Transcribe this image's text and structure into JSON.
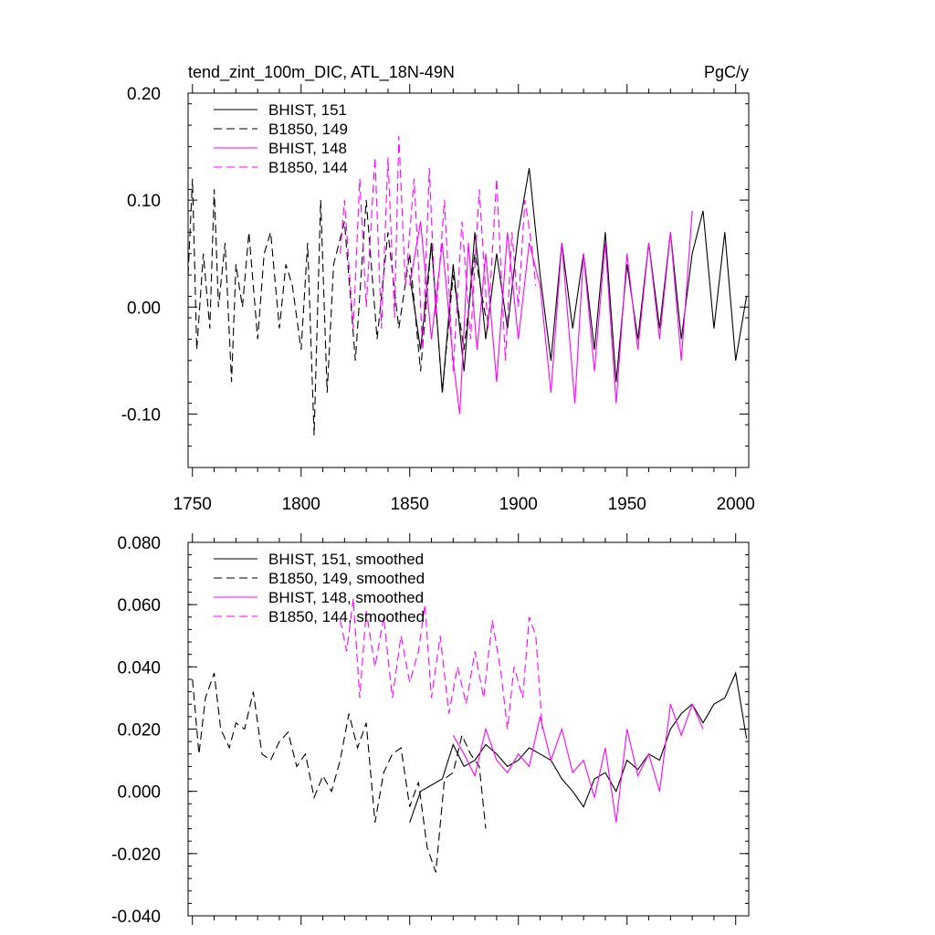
{
  "chart_data": [
    {
      "type": "line",
      "title": "tend_zint_100m_DIC, ATL_18N-49N",
      "units": "PgC/y",
      "xlim": [
        1748,
        2006
      ],
      "ylim": [
        -0.15,
        0.2
      ],
      "yticks": [
        -0.1,
        0.0,
        0.1,
        0.2
      ],
      "ytick_labels": [
        "-0.10",
        "0.00",
        "0.10",
        "0.20"
      ],
      "xticks": [
        1750,
        1800,
        1850,
        1900,
        1950,
        2000
      ],
      "xtick_labels": [
        "1750",
        "1800",
        "1850",
        "1900",
        "1950",
        "2000"
      ],
      "legend_location": "top-left",
      "series": [
        {
          "name": "BHIST, 151",
          "color": "#000000",
          "dash": "solid",
          "x": [
            1850,
            1855,
            1860,
            1865,
            1870,
            1875,
            1880,
            1885,
            1890,
            1895,
            1900,
            1905,
            1910,
            1915,
            1920,
            1925,
            1930,
            1935,
            1940,
            1945,
            1950,
            1955,
            1960,
            1965,
            1970,
            1975,
            1980,
            1985,
            1990,
            1995,
            2000,
            2005
          ],
          "values": [
            0.03,
            -0.04,
            0.06,
            -0.08,
            0.04,
            -0.06,
            0.07,
            -0.03,
            0.05,
            -0.02,
            0.07,
            0.13,
            0.03,
            -0.05,
            0.06,
            -0.02,
            0.05,
            -0.04,
            0.07,
            -0.07,
            0.04,
            -0.03,
            0.06,
            -0.02,
            0.07,
            -0.03,
            0.05,
            0.09,
            -0.02,
            0.07,
            -0.05,
            0.01
          ]
        },
        {
          "name": "B1850, 149",
          "color": "#000000",
          "dash": "dashed",
          "x": [
            1748,
            1750,
            1752,
            1755,
            1758,
            1760,
            1762,
            1765,
            1768,
            1770,
            1773,
            1776,
            1780,
            1783,
            1786,
            1790,
            1793,
            1796,
            1800,
            1803,
            1806,
            1809,
            1812,
            1815,
            1820,
            1825,
            1830,
            1835,
            1840,
            1845,
            1850,
            1855,
            1860,
            1865,
            1870,
            1875,
            1880,
            1885
          ],
          "values": [
            0.03,
            0.12,
            -0.04,
            0.05,
            -0.02,
            0.11,
            0.0,
            0.06,
            -0.07,
            0.04,
            0.0,
            0.07,
            -0.03,
            0.05,
            0.07,
            -0.02,
            0.04,
            0.02,
            -0.04,
            0.06,
            -0.12,
            0.1,
            -0.08,
            0.04,
            0.08,
            -0.05,
            0.1,
            -0.03,
            0.07,
            -0.02,
            0.05,
            -0.06,
            0.06,
            -0.08,
            0.03,
            -0.04,
            0.05,
            -0.01
          ]
        },
        {
          "name": "BHIST, 148",
          "color": "#ff00ff",
          "dash": "solid",
          "x": [
            1850,
            1855,
            1860,
            1865,
            1870,
            1873,
            1877,
            1881,
            1885,
            1890,
            1895,
            1900,
            1905,
            1910,
            1915,
            1920,
            1926,
            1930,
            1935,
            1940,
            1945,
            1950,
            1955,
            1960,
            1965,
            1970,
            1975,
            1980
          ],
          "values": [
            0.02,
            0.08,
            -0.03,
            0.06,
            -0.05,
            -0.1,
            0.06,
            -0.04,
            0.05,
            -0.07,
            0.07,
            -0.03,
            0.06,
            0.02,
            -0.08,
            0.06,
            -0.09,
            0.05,
            -0.06,
            0.06,
            -0.09,
            0.05,
            -0.04,
            0.06,
            -0.03,
            0.07,
            -0.05,
            0.09
          ]
        },
        {
          "name": "B1850, 144",
          "color": "#ff00ff",
          "dash": "dashed",
          "x": [
            1818,
            1820,
            1824,
            1827,
            1830,
            1834,
            1837,
            1840,
            1843,
            1845,
            1848,
            1852,
            1856,
            1859,
            1862,
            1866,
            1870,
            1874,
            1878,
            1882,
            1886,
            1890,
            1894,
            1897,
            1900,
            1903,
            1906,
            1908
          ],
          "values": [
            0.05,
            0.1,
            -0.02,
            0.12,
            0.0,
            0.14,
            -0.02,
            0.14,
            -0.01,
            0.16,
            0.02,
            0.12,
            -0.04,
            0.13,
            -0.01,
            0.1,
            -0.06,
            0.08,
            -0.03,
            0.11,
            -0.02,
            0.12,
            -0.05,
            0.07,
            0.0,
            0.1,
            0.06,
            0.02
          ]
        }
      ]
    },
    {
      "type": "line",
      "title": "",
      "units": "",
      "xlim": [
        1748,
        2006
      ],
      "ylim": [
        -0.04,
        0.08
      ],
      "yticks": [
        -0.04,
        -0.02,
        0.0,
        0.02,
        0.04,
        0.06,
        0.08
      ],
      "ytick_labels": [
        "-0.040",
        "-0.020",
        "0.000",
        "0.020",
        "0.040",
        "0.060",
        "0.080"
      ],
      "xticks": [
        1750,
        1800,
        1850,
        1900,
        1950,
        2000
      ],
      "xtick_labels": [],
      "legend_location": "top-left",
      "series": [
        {
          "name": "BHIST, 151, smoothed",
          "color": "#000000",
          "dash": "solid",
          "x": [
            1850,
            1855,
            1860,
            1865,
            1870,
            1875,
            1880,
            1885,
            1890,
            1895,
            1900,
            1905,
            1910,
            1915,
            1920,
            1925,
            1930,
            1935,
            1940,
            1945,
            1950,
            1955,
            1960,
            1965,
            1970,
            1975,
            1980,
            1985,
            1990,
            1995,
            2000,
            2005
          ],
          "values": [
            -0.01,
            0.0,
            0.002,
            0.004,
            0.015,
            0.008,
            0.01,
            0.015,
            0.012,
            0.008,
            0.01,
            0.014,
            0.012,
            0.01,
            0.004,
            0.0,
            -0.005,
            0.004,
            0.006,
            0.0,
            0.01,
            0.007,
            0.012,
            0.01,
            0.02,
            0.025,
            0.028,
            0.022,
            0.028,
            0.03,
            0.038,
            0.017
          ]
        },
        {
          "name": "B1850, 149, smoothed",
          "color": "#000000",
          "dash": "dashed",
          "x": [
            1750,
            1753,
            1756,
            1760,
            1763,
            1767,
            1770,
            1774,
            1778,
            1782,
            1786,
            1790,
            1794,
            1798,
            1802,
            1806,
            1810,
            1814,
            1818,
            1822,
            1826,
            1830,
            1834,
            1838,
            1842,
            1846,
            1850,
            1854,
            1858,
            1862,
            1866,
            1870,
            1874,
            1878,
            1882,
            1885
          ],
          "values": [
            0.036,
            0.012,
            0.03,
            0.038,
            0.02,
            0.014,
            0.022,
            0.02,
            0.032,
            0.012,
            0.01,
            0.016,
            0.019,
            0.008,
            0.012,
            -0.002,
            0.005,
            0.0,
            0.01,
            0.025,
            0.014,
            0.022,
            -0.01,
            0.006,
            0.012,
            0.014,
            -0.005,
            0.003,
            -0.018,
            -0.026,
            0.004,
            0.006,
            0.018,
            0.012,
            0.008,
            -0.012
          ]
        },
        {
          "name": "BHIST, 148, smoothed",
          "color": "#ff00ff",
          "dash": "solid",
          "x": [
            1870,
            1875,
            1880,
            1885,
            1890,
            1895,
            1900,
            1905,
            1910,
            1915,
            1920,
            1925,
            1930,
            1935,
            1940,
            1945,
            1950,
            1955,
            1960,
            1965,
            1970,
            1975,
            1980,
            1985
          ],
          "values": [
            0.018,
            0.012,
            0.005,
            0.02,
            0.01,
            0.006,
            0.012,
            0.008,
            0.024,
            0.01,
            0.02,
            0.006,
            0.01,
            -0.002,
            0.014,
            -0.01,
            0.02,
            0.005,
            0.012,
            0.0,
            0.028,
            0.018,
            0.028,
            0.02
          ]
        },
        {
          "name": "B1850, 144, smoothed",
          "color": "#ff00ff",
          "dash": "dashed",
          "x": [
            1818,
            1821,
            1824,
            1827,
            1830,
            1834,
            1838,
            1842,
            1846,
            1850,
            1854,
            1857,
            1860,
            1864,
            1868,
            1872,
            1876,
            1880,
            1884,
            1888,
            1892,
            1895,
            1898,
            1902,
            1905,
            1908,
            1911
          ],
          "values": [
            0.055,
            0.045,
            0.062,
            0.03,
            0.058,
            0.04,
            0.056,
            0.03,
            0.05,
            0.035,
            0.045,
            0.06,
            0.03,
            0.05,
            0.025,
            0.04,
            0.028,
            0.045,
            0.03,
            0.055,
            0.038,
            0.02,
            0.04,
            0.03,
            0.056,
            0.05,
            0.02
          ]
        }
      ]
    }
  ]
}
